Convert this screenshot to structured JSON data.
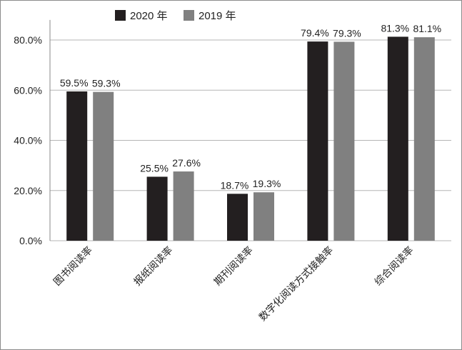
{
  "chart_data": {
    "type": "bar",
    "categories": [
      "图书阅读率",
      "报纸阅读率",
      "期刊阅读率",
      "数字化阅读方式接触率",
      "综合阅读率"
    ],
    "series": [
      {
        "name": "2020 年",
        "values": [
          59.5,
          25.5,
          18.7,
          79.4,
          81.3
        ],
        "labels": [
          "59.5%",
          "25.5%",
          "18.7%",
          "79.4%",
          "81.3%"
        ],
        "color": "#231f20"
      },
      {
        "name": "2019 年",
        "values": [
          59.3,
          27.6,
          19.3,
          79.3,
          81.1
        ],
        "labels": [
          "59.3%",
          "27.6%",
          "19.3%",
          "79.3%",
          "81.1%"
        ],
        "color": "#808080"
      }
    ],
    "yticks": [
      0,
      20,
      40,
      60,
      80
    ],
    "ytick_labels": [
      "0.0%",
      "20.0%",
      "40.0%",
      "60.0%",
      "80.0%"
    ],
    "ylim": [
      0,
      88
    ],
    "legend_position": "top-left",
    "grid": true
  }
}
